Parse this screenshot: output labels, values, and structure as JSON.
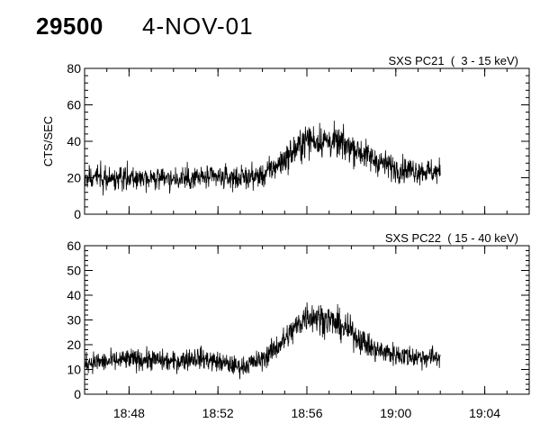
{
  "header": {
    "obs_id": "29500",
    "date": "4-NOV-01"
  },
  "colors": {
    "background": "#ffffff",
    "ink": "#000000"
  },
  "chart_data": [
    {
      "type": "line",
      "title": "SXS PC21  (  3 - 15 keV)",
      "xlabel": "",
      "ylabel": "CTS/SEC",
      "xlim": [
        "18:46",
        "19:06"
      ],
      "ylim": [
        0,
        80
      ],
      "yticks": [
        0,
        20,
        40,
        60,
        80
      ],
      "xticks": [
        "18:48",
        "18:52",
        "18:56",
        "19:00",
        "19:04"
      ],
      "grid": false,
      "series": [
        {
          "x": [
            "18:46",
            "18:47",
            "18:48",
            "18:49",
            "18:50",
            "18:51",
            "18:52",
            "18:53",
            "18:54",
            "18:55",
            "18:56",
            "18:57",
            "18:58",
            "18:59",
            "19:00",
            "19:01",
            "19:02"
          ],
          "values": [
            20,
            20,
            20,
            20,
            19,
            20,
            20,
            20,
            21,
            30,
            41,
            40,
            37,
            30,
            25,
            24,
            23
          ]
        }
      ]
    },
    {
      "type": "line",
      "title": "SXS PC22  ( 15 - 40 keV)",
      "xlabel": "",
      "ylabel": "",
      "xlim": [
        "18:46",
        "19:06"
      ],
      "ylim": [
        0,
        60
      ],
      "yticks": [
        0,
        10,
        20,
        30,
        40,
        50,
        60
      ],
      "xticks": [
        "18:48",
        "18:52",
        "18:56",
        "19:00",
        "19:04"
      ],
      "grid": false,
      "series": [
        {
          "x": [
            "18:46",
            "18:47",
            "18:48",
            "18:49",
            "18:50",
            "18:51",
            "18:52",
            "18:53",
            "18:54",
            "18:55",
            "18:56",
            "18:57",
            "18:58",
            "18:59",
            "19:00",
            "19:01",
            "19:02"
          ],
          "values": [
            13,
            13,
            14,
            14,
            13,
            15,
            13,
            11,
            14,
            22,
            32,
            30,
            25,
            18,
            16,
            15,
            15
          ]
        }
      ]
    }
  ]
}
